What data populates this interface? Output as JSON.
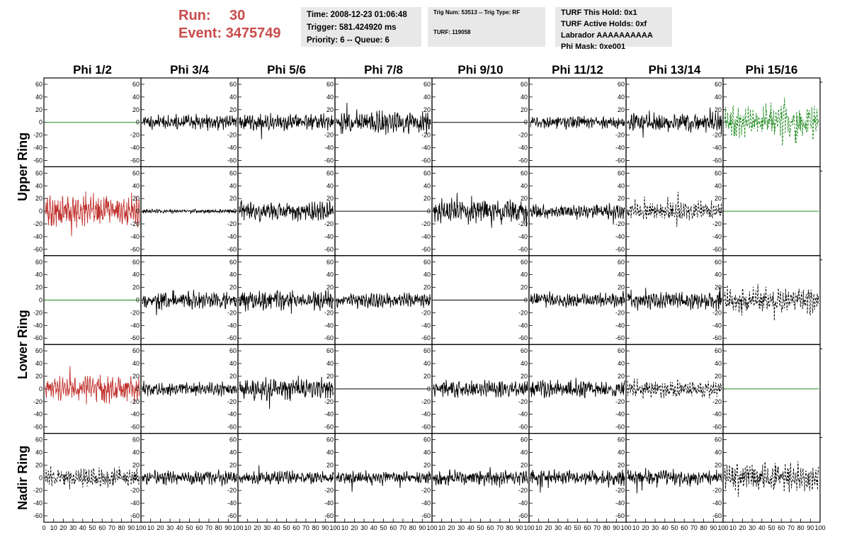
{
  "header": {
    "run_label": "Run:",
    "run_value": "30",
    "event_label": "Event:",
    "event_value": "3475749",
    "info_time": "Time: 2008-12-23 01:06:48",
    "info_trigger": "Trigger: 581.424920 ms",
    "info_priority": "Priority: 6 -- Queue: 6",
    "info_trig": "Trig Num: 53513 -- Trig Type: RF",
    "info_turf": "TURF: 119058",
    "info_hold": "TURF This Hold: 0x1",
    "info_active": "TURF Active Holds: 0xf",
    "info_labrador": "Labrador AAAAAAAAAA",
    "info_phimask": "Phi Mask: 0xe001"
  },
  "colors": {
    "red_title": "#c94b4b",
    "info_bg": "#e8e8e8",
    "black_trace": "#000000",
    "red_trace": "#c0302c",
    "green_trace": "#1f8a1f"
  },
  "chart_data": {
    "type": "line",
    "columns": [
      "Phi 1/2",
      "Phi 3/4",
      "Phi 5/6",
      "Phi 7/8",
      "Phi 9/10",
      "Phi 11/12",
      "Phi 13/14",
      "Phi 15/16"
    ],
    "rows": [
      "Upper Ring",
      "Lower Ring",
      "Nadir Ring"
    ],
    "ylim": [
      -70,
      70
    ],
    "y_ticks": [
      -60,
      -40,
      -20,
      0,
      20,
      40,
      60
    ],
    "xlim": [
      0,
      100
    ],
    "x_ticks": [
      0,
      10,
      20,
      30,
      40,
      50,
      60,
      70,
      80,
      90,
      100
    ],
    "grid": false,
    "panels": [
      [
        {
          "style": "flat",
          "color": "green",
          "amp": 0,
          "seed": 11
        },
        {
          "style": "solid",
          "color": "black",
          "amp": 12,
          "seed": 12
        },
        {
          "style": "solid",
          "color": "black",
          "amp": 13,
          "seed": 13
        },
        {
          "style": "solid",
          "color": "black",
          "amp": 16,
          "seed": 14
        },
        {
          "style": "flat",
          "color": "black",
          "amp": 0,
          "seed": 15
        },
        {
          "style": "solid",
          "color": "black",
          "amp": 10,
          "seed": 16
        },
        {
          "style": "solid",
          "color": "black",
          "amp": 15,
          "seed": 17
        },
        {
          "style": "dashed",
          "color": "green",
          "amp": 26,
          "seed": 18
        }
      ],
      [
        {
          "style": "solid",
          "color": "red",
          "amp": 25,
          "seed": 21
        },
        {
          "style": "solid",
          "color": "black",
          "amp": 3,
          "seed": 22
        },
        {
          "style": "solid",
          "color": "black",
          "amp": 15,
          "seed": 23
        },
        {
          "style": "flat",
          "color": "black",
          "amp": 0,
          "seed": 24
        },
        {
          "style": "solid",
          "color": "black",
          "amp": 18,
          "seed": 25
        },
        {
          "style": "solid",
          "color": "black",
          "amp": 11,
          "seed": 26
        },
        {
          "style": "dashed",
          "color": "black",
          "amp": 14,
          "seed": 27
        },
        {
          "style": "flat",
          "color": "green",
          "amp": 0,
          "seed": 28
        }
      ],
      [
        {
          "style": "flat",
          "color": "green",
          "amp": 0,
          "seed": 31
        },
        {
          "style": "solid",
          "color": "black",
          "amp": 13,
          "seed": 32
        },
        {
          "style": "solid",
          "color": "black",
          "amp": 15,
          "seed": 33
        },
        {
          "style": "solid",
          "color": "black",
          "amp": 11,
          "seed": 34
        },
        {
          "style": "flat",
          "color": "black",
          "amp": 0,
          "seed": 35
        },
        {
          "style": "solid",
          "color": "black",
          "amp": 11,
          "seed": 36
        },
        {
          "style": "solid",
          "color": "black",
          "amp": 14,
          "seed": 37
        },
        {
          "style": "dashed",
          "color": "black",
          "amp": 20,
          "seed": 38
        }
      ],
      [
        {
          "style": "solid",
          "color": "red",
          "amp": 20,
          "seed": 41
        },
        {
          "style": "solid",
          "color": "black",
          "amp": 10,
          "seed": 42
        },
        {
          "style": "solid",
          "color": "black",
          "amp": 16,
          "seed": 43
        },
        {
          "style": "flat",
          "color": "black",
          "amp": 0,
          "seed": 44
        },
        {
          "style": "solid",
          "color": "black",
          "amp": 13,
          "seed": 45
        },
        {
          "style": "solid",
          "color": "black",
          "amp": 13,
          "seed": 46
        },
        {
          "style": "dashed",
          "color": "black",
          "amp": 13,
          "seed": 47
        },
        {
          "style": "flat",
          "color": "green",
          "amp": 0,
          "seed": 48
        }
      ],
      [
        {
          "style": "dashed",
          "color": "black",
          "amp": 14,
          "seed": 51
        },
        {
          "style": "solid",
          "color": "black",
          "amp": 11,
          "seed": 52
        },
        {
          "style": "solid",
          "color": "black",
          "amp": 10,
          "seed": 53
        },
        {
          "style": "solid",
          "color": "black",
          "amp": 10,
          "seed": 54
        },
        {
          "style": "solid",
          "color": "black",
          "amp": 11,
          "seed": 55
        },
        {
          "style": "solid",
          "color": "black",
          "amp": 12,
          "seed": 56
        },
        {
          "style": "solid",
          "color": "black",
          "amp": 12,
          "seed": 57
        },
        {
          "style": "dashed",
          "color": "black",
          "amp": 22,
          "seed": 58
        }
      ]
    ]
  }
}
